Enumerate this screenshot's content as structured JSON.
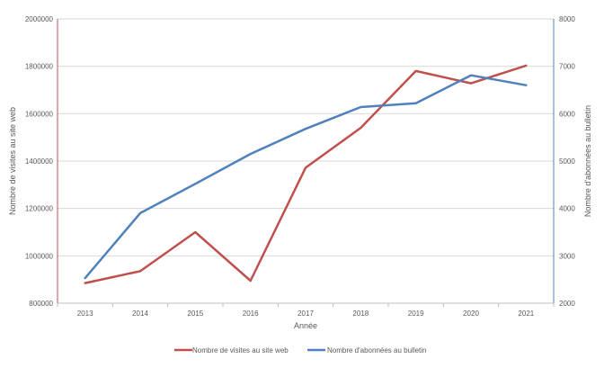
{
  "chart_data": {
    "type": "line",
    "title": "",
    "xlabel": "Année",
    "ylabel": "Nombre de visites au site web",
    "y2label": "Nombre d'abonnées au bulletin",
    "categories": [
      "2013",
      "2014",
      "2015",
      "2016",
      "2017",
      "2018",
      "2019",
      "2020",
      "2021"
    ],
    "ylim": [
      800000,
      2000000
    ],
    "y_ticks": [
      "800000",
      "1000000",
      "1200000",
      "1400000",
      "1600000",
      "1800000",
      "2000000"
    ],
    "y2lim": [
      2000,
      8000
    ],
    "y2_ticks": [
      "2000",
      "3000",
      "4000",
      "5000",
      "6000",
      "7000",
      "8000"
    ],
    "grid": true,
    "legend_position": "bottom",
    "series": [
      {
        "name": "Nombre de visites au site web",
        "axis": "left",
        "color": "#c0504d",
        "values": [
          885000,
          935000,
          1100000,
          895000,
          1372000,
          1540000,
          1780000,
          1728000,
          1803000
        ]
      },
      {
        "name": "Nombre d'abonnées au bulletin",
        "axis": "right",
        "color": "#4f81bd",
        "values": [
          2530,
          3900,
          4520,
          5150,
          5680,
          6140,
          6220,
          6810,
          6600
        ]
      }
    ]
  }
}
